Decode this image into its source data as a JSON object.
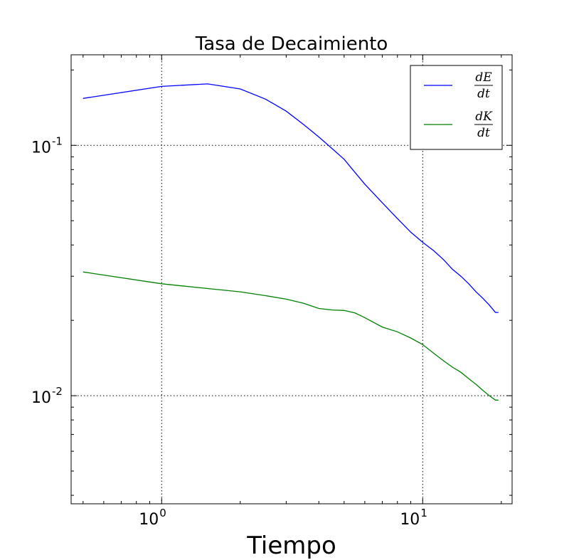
{
  "chart_data": {
    "type": "line",
    "title": "Tasa de Decaimiento",
    "xlabel": "Tiempo",
    "ylabel": "",
    "xscale": "log",
    "yscale": "log",
    "xlim": [
      0.45,
      22
    ],
    "ylim": [
      0.0037,
      0.23
    ],
    "grid": true,
    "legend_position": "top-right",
    "x_ticks": [
      {
        "base": "10",
        "exp": "0",
        "value": 1
      },
      {
        "base": "10",
        "exp": "1",
        "value": 10
      }
    ],
    "y_ticks": [
      {
        "base": "10",
        "exp": "-1",
        "value": 0.1
      },
      {
        "base": "10",
        "exp": "-2",
        "value": 0.01
      }
    ],
    "series": [
      {
        "name": {
          "num": "dE",
          "den": "dt"
        },
        "color": "#0000ff",
        "x": [
          0.5,
          1.0,
          1.5,
          2.0,
          2.5,
          3.0,
          3.5,
          4.0,
          4.5,
          5.0,
          5.5,
          6.0,
          7.0,
          8.0,
          9.0,
          10.0,
          11.0,
          12.0,
          13.0,
          14.0,
          15.0,
          16.0,
          17.0,
          18.0,
          19.0,
          19.5
        ],
        "values": [
          0.154,
          0.172,
          0.176,
          0.168,
          0.153,
          0.137,
          0.121,
          0.108,
          0.097,
          0.088,
          0.078,
          0.07,
          0.059,
          0.051,
          0.045,
          0.041,
          0.038,
          0.035,
          0.032,
          0.03,
          0.028,
          0.026,
          0.0245,
          0.023,
          0.0215,
          0.0215
        ]
      },
      {
        "name": {
          "num": "dK",
          "den": "dt"
        },
        "color": "#008000",
        "x": [
          0.5,
          1.0,
          1.5,
          2.0,
          2.5,
          3.0,
          3.5,
          4.0,
          4.5,
          5.0,
          5.5,
          6.0,
          7.0,
          8.0,
          9.0,
          10.0,
          11.0,
          12.0,
          13.0,
          14.0,
          15.0,
          16.0,
          17.0,
          18.0,
          19.0,
          19.5
        ],
        "values": [
          0.0312,
          0.028,
          0.0268,
          0.026,
          0.0251,
          0.0243,
          0.0234,
          0.0223,
          0.022,
          0.0219,
          0.0214,
          0.0205,
          0.0188,
          0.018,
          0.017,
          0.016,
          0.0148,
          0.0138,
          0.013,
          0.0124,
          0.0117,
          0.0111,
          0.0105,
          0.01,
          0.0096,
          0.0096
        ]
      }
    ]
  }
}
